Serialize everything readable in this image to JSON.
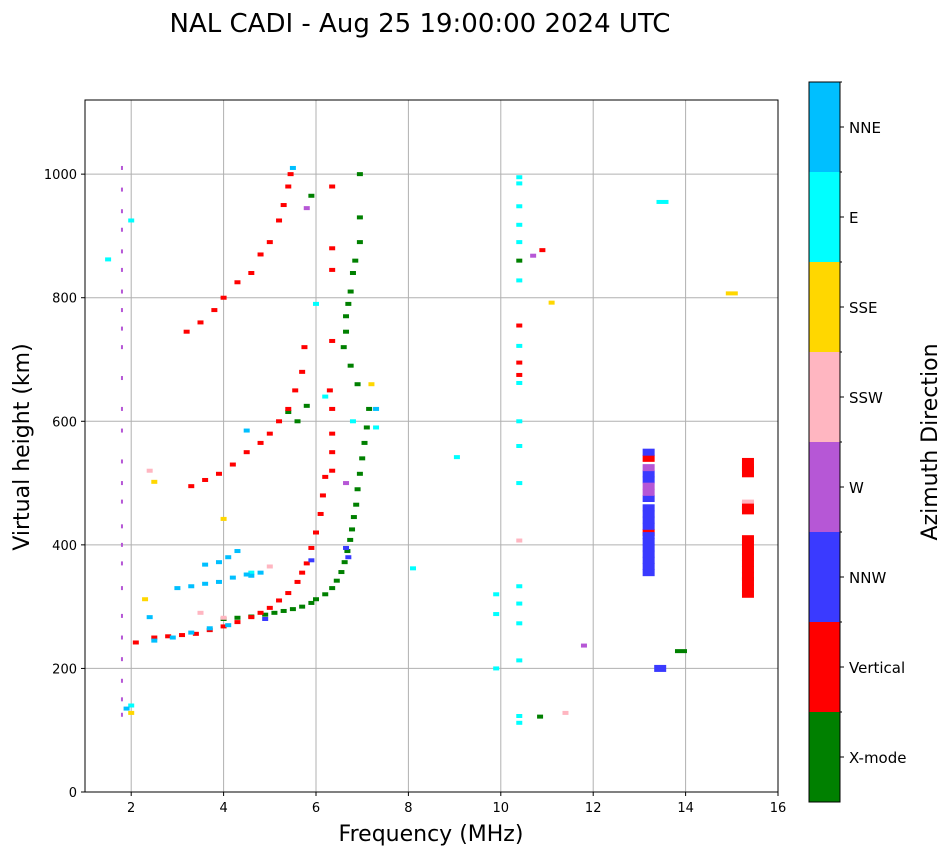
{
  "chart_data": {
    "type": "scatter",
    "title": "NAL CADI - Aug 25 19:00:00 2024 UTC",
    "xlabel": "Frequency (MHz)",
    "ylabel": "Virtual height (km)",
    "xlim": [
      1,
      16
    ],
    "ylim": [
      0,
      1120
    ],
    "xticks": [
      2,
      4,
      6,
      8,
      10,
      12,
      14,
      16
    ],
    "yticks": [
      0,
      200,
      400,
      600,
      800,
      1000
    ],
    "grid": true,
    "colorbar": {
      "label": "Azimuth Direction",
      "categories": [
        "X-mode",
        "Vertical",
        "NNW",
        "W",
        "SSW",
        "SSE",
        "E",
        "NNE"
      ],
      "colors": [
        "#008000",
        "#ff0000",
        "#3a3aff",
        "#b657d6",
        "#ffb6c1",
        "#ffd700",
        "#00ffff",
        "#00bfff"
      ]
    },
    "series": [
      {
        "name": "X-mode",
        "points": [
          [
            4.0,
            280
          ],
          [
            4.3,
            282
          ],
          [
            4.6,
            284
          ],
          [
            4.9,
            287
          ],
          [
            5.1,
            290
          ],
          [
            5.3,
            293
          ],
          [
            5.5,
            296
          ],
          [
            5.7,
            300
          ],
          [
            5.9,
            306
          ],
          [
            6.0,
            312
          ],
          [
            6.2,
            320
          ],
          [
            6.35,
            330
          ],
          [
            6.45,
            342
          ],
          [
            6.55,
            356
          ],
          [
            6.62,
            372
          ],
          [
            6.68,
            390
          ],
          [
            6.74,
            408
          ],
          [
            6.78,
            425
          ],
          [
            6.82,
            445
          ],
          [
            6.87,
            465
          ],
          [
            6.9,
            490
          ],
          [
            6.95,
            515
          ],
          [
            7.0,
            540
          ],
          [
            7.05,
            565
          ],
          [
            7.1,
            590
          ],
          [
            7.15,
            620
          ],
          [
            6.9,
            660
          ],
          [
            6.75,
            690
          ],
          [
            6.6,
            720
          ],
          [
            6.65,
            745
          ],
          [
            6.65,
            770
          ],
          [
            6.7,
            790
          ],
          [
            6.75,
            810
          ],
          [
            6.8,
            840
          ],
          [
            6.85,
            860
          ],
          [
            6.95,
            890
          ],
          [
            6.95,
            930
          ],
          [
            6.95,
            1000
          ],
          [
            5.9,
            965
          ],
          [
            5.4,
            615
          ],
          [
            5.6,
            600
          ],
          [
            5.8,
            625
          ],
          [
            10.4,
            860
          ],
          [
            10.85,
            122
          ],
          [
            13.9,
            228
          ],
          [
            15.35,
            345
          ],
          [
            15.35,
            460
          ],
          [
            15.35,
            525
          ]
        ]
      },
      {
        "name": "Vertical",
        "points": [
          [
            2.1,
            242
          ],
          [
            2.5,
            250
          ],
          [
            2.8,
            252
          ],
          [
            3.1,
            254
          ],
          [
            3.4,
            256
          ],
          [
            3.7,
            262
          ],
          [
            4.0,
            268
          ],
          [
            4.3,
            275
          ],
          [
            4.6,
            283
          ],
          [
            4.8,
            290
          ],
          [
            5.0,
            298
          ],
          [
            5.2,
            310
          ],
          [
            5.4,
            322
          ],
          [
            5.6,
            340
          ],
          [
            5.7,
            355
          ],
          [
            5.8,
            370
          ],
          [
            5.9,
            395
          ],
          [
            6.0,
            420
          ],
          [
            6.1,
            450
          ],
          [
            6.15,
            480
          ],
          [
            6.2,
            510
          ],
          [
            3.3,
            495
          ],
          [
            3.6,
            505
          ],
          [
            3.9,
            515
          ],
          [
            4.2,
            530
          ],
          [
            4.5,
            550
          ],
          [
            4.8,
            565
          ],
          [
            5.0,
            580
          ],
          [
            5.2,
            600
          ],
          [
            5.4,
            620
          ],
          [
            5.55,
            650
          ],
          [
            5.7,
            680
          ],
          [
            5.75,
            720
          ],
          [
            6.3,
            650
          ],
          [
            6.35,
            620
          ],
          [
            6.35,
            580
          ],
          [
            6.35,
            550
          ],
          [
            6.35,
            520
          ],
          [
            6.35,
            730
          ],
          [
            6.35,
            845
          ],
          [
            6.35,
            880
          ],
          [
            6.35,
            980
          ],
          [
            3.2,
            745
          ],
          [
            3.5,
            760
          ],
          [
            3.8,
            780
          ],
          [
            4.0,
            800
          ],
          [
            4.3,
            825
          ],
          [
            4.6,
            840
          ],
          [
            4.8,
            870
          ],
          [
            5.0,
            890
          ],
          [
            5.2,
            925
          ],
          [
            5.3,
            950
          ],
          [
            5.4,
            980
          ],
          [
            5.45,
            1000
          ],
          [
            10.4,
            755
          ],
          [
            10.4,
            695
          ],
          [
            10.4,
            675
          ],
          [
            10.9,
            877
          ],
          [
            13.2,
            420
          ],
          [
            13.2,
            540
          ],
          [
            15.35,
            320
          ],
          [
            15.35,
            330
          ],
          [
            15.35,
            340
          ],
          [
            15.35,
            350
          ],
          [
            15.35,
            360
          ],
          [
            15.35,
            370
          ],
          [
            15.35,
            380
          ],
          [
            15.35,
            390
          ],
          [
            15.35,
            400
          ],
          [
            15.35,
            410
          ],
          [
            15.35,
            455
          ],
          [
            15.35,
            465
          ],
          [
            15.35,
            515
          ],
          [
            15.35,
            525
          ],
          [
            15.35,
            535
          ]
        ]
      },
      {
        "name": "NNW",
        "points": [
          [
            13.2,
            355
          ],
          [
            13.2,
            365
          ],
          [
            13.2,
            375
          ],
          [
            13.2,
            385
          ],
          [
            13.2,
            395
          ],
          [
            13.2,
            405
          ],
          [
            13.2,
            415
          ],
          [
            13.2,
            430
          ],
          [
            13.2,
            440
          ],
          [
            13.2,
            450
          ],
          [
            13.2,
            460
          ],
          [
            13.2,
            475
          ],
          [
            13.2,
            505
          ],
          [
            13.2,
            515
          ],
          [
            13.2,
            550
          ],
          [
            13.45,
            200
          ],
          [
            4.9,
            280
          ],
          [
            6.7,
            380
          ],
          [
            6.65,
            395
          ],
          [
            5.9,
            375
          ]
        ]
      },
      {
        "name": "W",
        "points": [
          [
            1.8,
            125
          ],
          [
            1.8,
            150
          ],
          [
            1.8,
            180
          ],
          [
            1.8,
            215
          ],
          [
            1.8,
            250
          ],
          [
            1.8,
            285
          ],
          [
            1.8,
            330
          ],
          [
            1.8,
            370
          ],
          [
            1.8,
            400
          ],
          [
            1.8,
            430
          ],
          [
            1.8,
            470
          ],
          [
            1.8,
            500
          ],
          [
            1.8,
            535
          ],
          [
            1.8,
            585
          ],
          [
            1.8,
            620
          ],
          [
            1.8,
            670
          ],
          [
            1.8,
            720
          ],
          [
            1.8,
            750
          ],
          [
            1.8,
            780
          ],
          [
            1.8,
            810
          ],
          [
            1.8,
            845
          ],
          [
            1.8,
            875
          ],
          [
            1.8,
            910
          ],
          [
            1.8,
            940
          ],
          [
            1.8,
            975
          ],
          [
            1.8,
            1010
          ],
          [
            13.2,
            485
          ],
          [
            13.2,
            495
          ],
          [
            13.2,
            525
          ],
          [
            6.65,
            500
          ],
          [
            10.7,
            868
          ],
          [
            5.8,
            945
          ],
          [
            11.8,
            237
          ]
        ]
      },
      {
        "name": "SSW",
        "points": [
          [
            3.5,
            290
          ],
          [
            4.0,
            282
          ],
          [
            10.4,
            407
          ],
          [
            11.4,
            128
          ],
          [
            15.35,
            470
          ],
          [
            2.4,
            520
          ],
          [
            5.0,
            365
          ]
        ]
      },
      {
        "name": "SSE",
        "points": [
          [
            2.3,
            312
          ],
          [
            2.5,
            502
          ],
          [
            4.0,
            442
          ],
          [
            7.2,
            660
          ],
          [
            11.1,
            792
          ],
          [
            15.0,
            807
          ],
          [
            2.0,
            128
          ]
        ]
      },
      {
        "name": "E",
        "points": [
          [
            1.5,
            862
          ],
          [
            2.0,
            925
          ],
          [
            4.6,
            355
          ],
          [
            6.0,
            790
          ],
          [
            6.2,
            640
          ],
          [
            6.8,
            600
          ],
          [
            7.3,
            590
          ],
          [
            10.4,
            995
          ],
          [
            10.4,
            985
          ],
          [
            10.4,
            948
          ],
          [
            10.4,
            918
          ],
          [
            10.4,
            890
          ],
          [
            10.4,
            828
          ],
          [
            10.4,
            722
          ],
          [
            10.4,
            662
          ],
          [
            10.4,
            600
          ],
          [
            10.4,
            560
          ],
          [
            10.4,
            500
          ],
          [
            10.4,
            333
          ],
          [
            10.4,
            305
          ],
          [
            10.4,
            273
          ],
          [
            10.4,
            213
          ],
          [
            10.4,
            123
          ],
          [
            10.4,
            112
          ],
          [
            9.9,
            320
          ],
          [
            9.9,
            288
          ],
          [
            9.9,
            200
          ],
          [
            9.05,
            542
          ],
          [
            8.1,
            362
          ],
          [
            13.5,
            955
          ],
          [
            2.0,
            140
          ]
        ]
      },
      {
        "name": "NNE",
        "points": [
          [
            2.5,
            245
          ],
          [
            2.9,
            250
          ],
          [
            3.3,
            258
          ],
          [
            3.7,
            265
          ],
          [
            4.1,
            270
          ],
          [
            3.0,
            330
          ],
          [
            3.3,
            333
          ],
          [
            3.6,
            337
          ],
          [
            3.9,
            340
          ],
          [
            4.2,
            347
          ],
          [
            4.5,
            352
          ],
          [
            4.8,
            355
          ],
          [
            3.6,
            368
          ],
          [
            3.9,
            372
          ],
          [
            4.1,
            380
          ],
          [
            4.3,
            390
          ],
          [
            4.6,
            350
          ],
          [
            1.9,
            135
          ],
          [
            2.4,
            283
          ],
          [
            7.3,
            620
          ],
          [
            5.5,
            1010
          ],
          [
            4.5,
            585
          ]
        ]
      }
    ]
  }
}
